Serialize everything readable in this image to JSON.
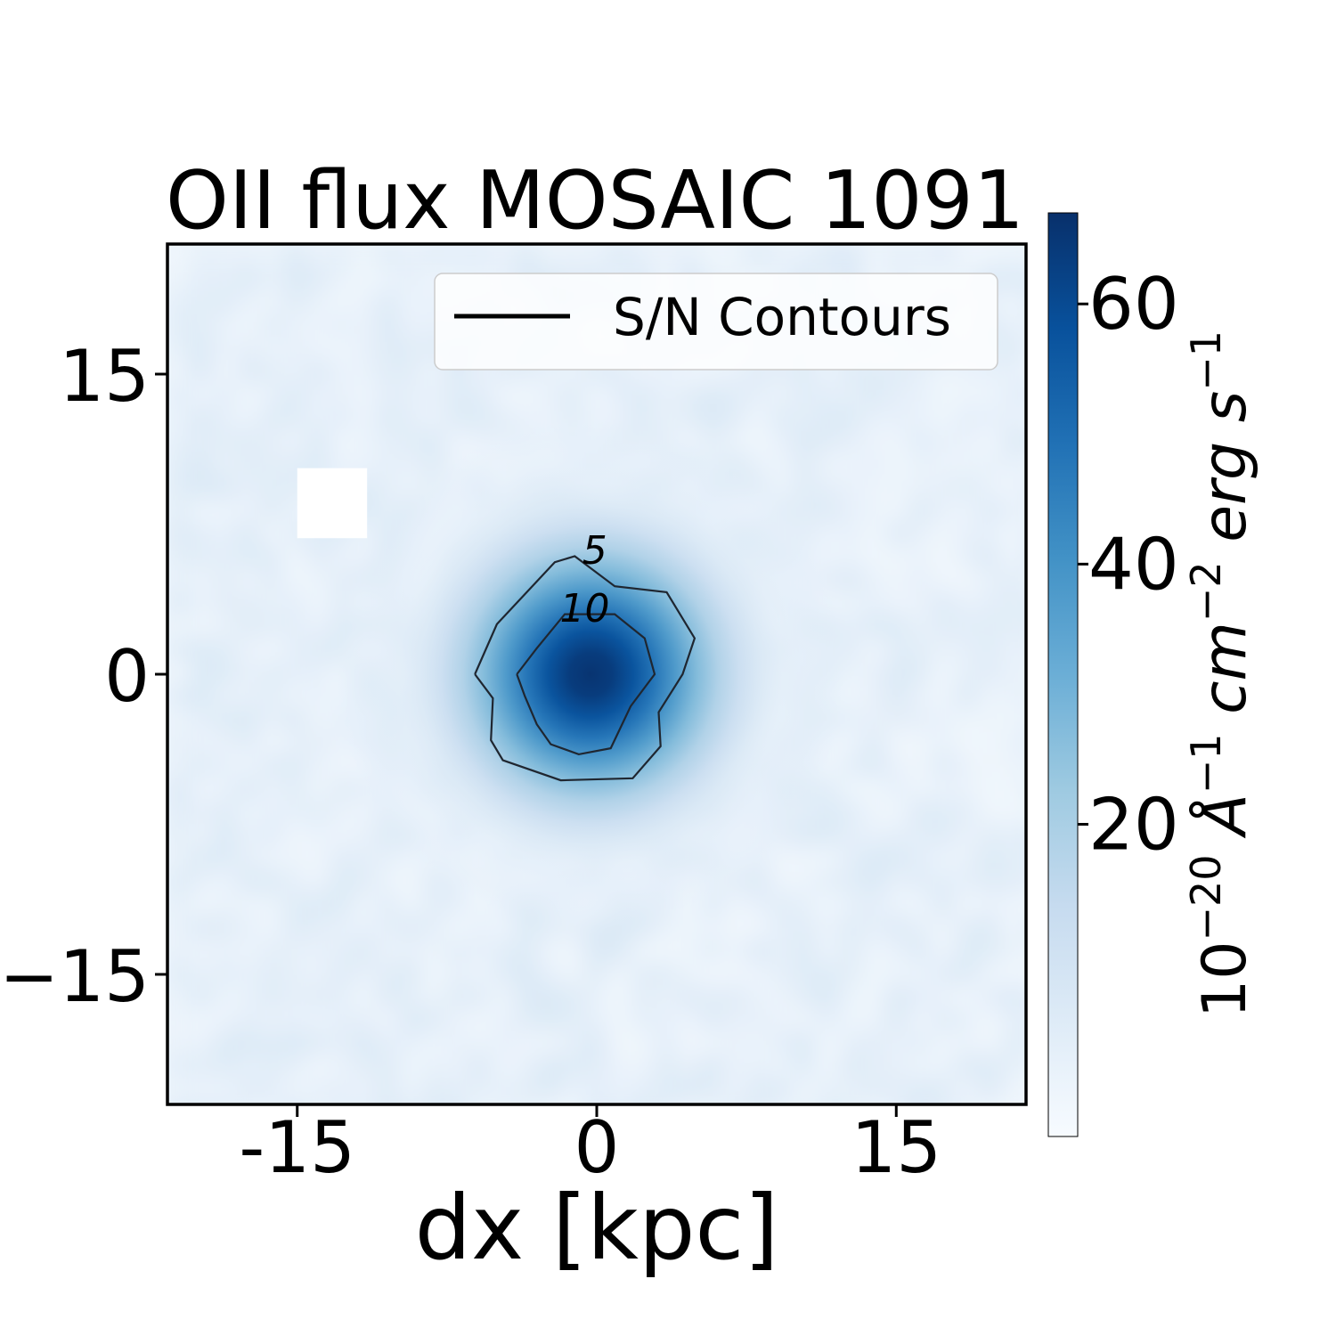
{
  "chart_data": {
    "type": "heatmap",
    "title": "OII flux MOSAIC 1091",
    "xlabel": "dx [kpc]",
    "ylabel": "",
    "xlim": [
      -21.5,
      21.5
    ],
    "ylim": [
      -21.5,
      21.5
    ],
    "x_ticks": [
      -15,
      0,
      15
    ],
    "x_tick_labels": [
      "-15",
      "0",
      "15"
    ],
    "y_ticks": [
      15,
      0,
      -15
    ],
    "y_tick_labels": [
      "15",
      "0",
      "−15"
    ],
    "colormap": "Blues",
    "colormap_stops": [
      "#f7fbff",
      "#deebf7",
      "#c6dbef",
      "#9ecae1",
      "#6baed6",
      "#4292c6",
      "#2171b5",
      "#08519c",
      "#08306b"
    ],
    "colorbar": {
      "min": -4,
      "max": 67,
      "ticks": [
        20,
        40,
        60
      ],
      "tick_labels": [
        "20",
        "40",
        "60"
      ],
      "label_parts": [
        "10",
        "−20",
        " Å",
        "−1",
        " cm",
        "−2",
        " erg s",
        "−1"
      ]
    },
    "source": {
      "x": -0.3,
      "y": 0.0,
      "peak": 66,
      "sigma_kpc": 4.0
    },
    "masked_region": {
      "x": [
        -15,
        -11.5
      ],
      "y": [
        6.8,
        10.3
      ]
    },
    "legend": {
      "entries": [
        "S/N Contours"
      ],
      "placement": "top-right"
    },
    "contours": [
      {
        "level": 5,
        "label": "5",
        "points": [
          [
            -6.1,
            0
          ],
          [
            -5.0,
            2.5
          ],
          [
            -2.1,
            5.6
          ],
          [
            -1.1,
            5.9
          ],
          [
            0.9,
            4.4
          ],
          [
            3.5,
            4.1
          ],
          [
            4.9,
            1.8
          ],
          [
            4.3,
            0
          ],
          [
            3.1,
            -1.9
          ],
          [
            3.2,
            -3.6
          ],
          [
            1.8,
            -5.2
          ],
          [
            -1.8,
            -5.3
          ],
          [
            -4.7,
            -4.3
          ],
          [
            -5.3,
            -3.3
          ],
          [
            -5.2,
            -1.2
          ],
          [
            -6.1,
            0
          ]
        ]
      },
      {
        "level": 10,
        "label": "10",
        "points": [
          [
            -4.0,
            0
          ],
          [
            -3.0,
            1.3
          ],
          [
            -1.6,
            3.0
          ],
          [
            0.9,
            3.0
          ],
          [
            2.4,
            1.8
          ],
          [
            2.9,
            0
          ],
          [
            1.7,
            -1.6
          ],
          [
            0.7,
            -3.7
          ],
          [
            -0.9,
            -4.0
          ],
          [
            -2.3,
            -3.5
          ],
          [
            -3.0,
            -2.5
          ],
          [
            -3.6,
            -1.1
          ],
          [
            -4.0,
            0
          ]
        ]
      }
    ]
  }
}
